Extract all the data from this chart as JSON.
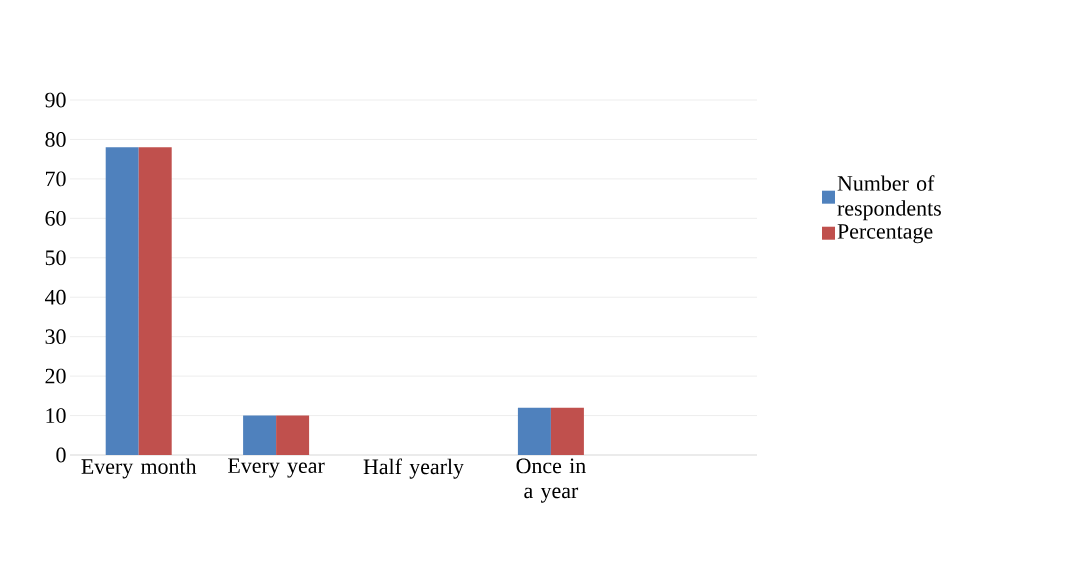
{
  "chart_data": {
    "type": "bar",
    "categories": [
      "Every month",
      "Every year",
      "Half yearly",
      "Once in a year",
      null
    ],
    "series": [
      {
        "name": "Number of respondents",
        "color": "#4f81bd",
        "values": [
          78,
          10,
          0,
          12,
          0
        ]
      },
      {
        "name": "Percentage",
        "color": "#c0504d",
        "values": [
          78,
          10,
          0,
          12,
          0
        ]
      }
    ],
    "ylim": [
      0,
      90
    ],
    "yticks": [
      0,
      10,
      20,
      30,
      40,
      50,
      60,
      70,
      80,
      90
    ],
    "grid": "y",
    "legend": "right"
  }
}
